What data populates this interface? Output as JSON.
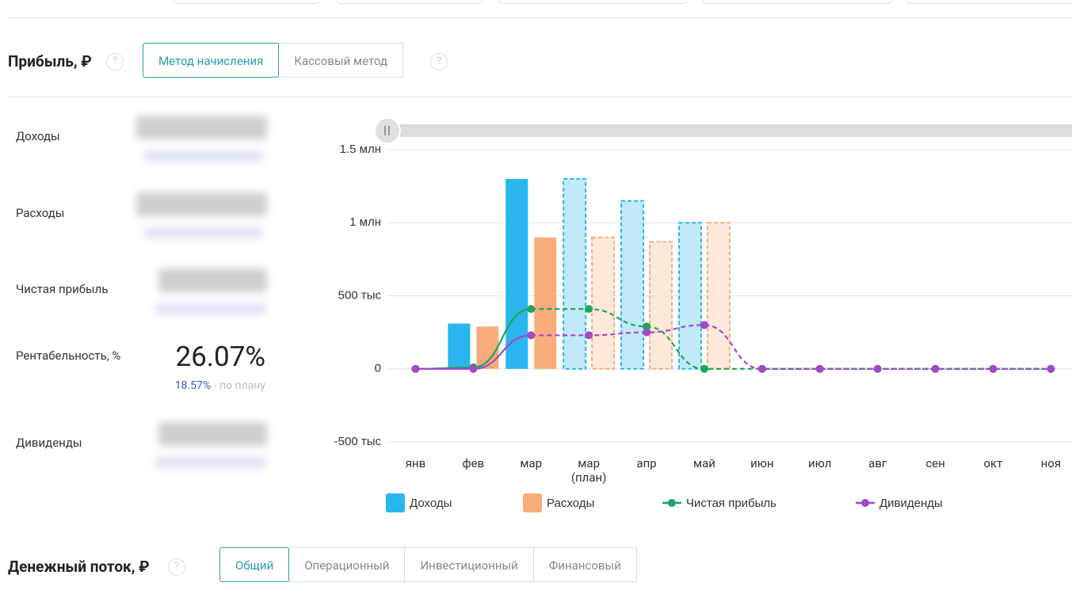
{
  "header": {
    "title": "Прибыль, ₽",
    "tabs": [
      "Метод начисления",
      "Кассовый метод"
    ],
    "active_tab": 0
  },
  "metrics": {
    "labels": [
      "Доходы",
      "Расходы",
      "Чистая прибыль",
      "Рентабельность, %",
      "Дивиденды"
    ],
    "profitability": "26.07%",
    "plan_value": "18.57%",
    "plan_label": "- по плану"
  },
  "chart_data": {
    "type": "bar",
    "categories": [
      "янв",
      "фев",
      "мар",
      "мар (план)",
      "апр",
      "май",
      "июн",
      "июл",
      "авг",
      "сен",
      "окт",
      "ноя"
    ],
    "forecast_start": 3,
    "ylim": [
      -500000,
      1500000
    ],
    "yticks": [
      {
        "value": 1500000,
        "label": "1.5 млн"
      },
      {
        "value": 1000000,
        "label": "1 млн"
      },
      {
        "value": 500000,
        "label": "500 тыс"
      },
      0,
      {
        "value": -500000,
        "label": "-500 тыс"
      }
    ],
    "grid": true,
    "series": [
      {
        "name": "Доходы",
        "type": "bar",
        "color": "#29b6ef",
        "values": [
          0,
          310000,
          1300000,
          1300000,
          1150000,
          1000000,
          0,
          0,
          0,
          0,
          0,
          0
        ]
      },
      {
        "name": "Расходы",
        "type": "bar",
        "color": "#f8ad7b",
        "values": [
          0,
          290000,
          900000,
          900000,
          870000,
          1000000,
          0,
          0,
          0,
          0,
          0,
          0
        ]
      },
      {
        "name": "Чистая прибыль",
        "type": "line",
        "color": "#1ea65a",
        "values": [
          0,
          10000,
          410000,
          410000,
          290000,
          0,
          0,
          0,
          0,
          0,
          0,
          0
        ]
      },
      {
        "name": "Дивиденды",
        "type": "line",
        "color": "#a447c8",
        "values": [
          0,
          0,
          230000,
          230000,
          250000,
          300000,
          0,
          0,
          0,
          0,
          0,
          0
        ]
      }
    ]
  },
  "cash_flow": {
    "title": "Денежный поток, ₽",
    "tabs": [
      "Общий",
      "Операционный",
      "Инвестиционный",
      "Финансовый"
    ],
    "active_tab": 0
  }
}
